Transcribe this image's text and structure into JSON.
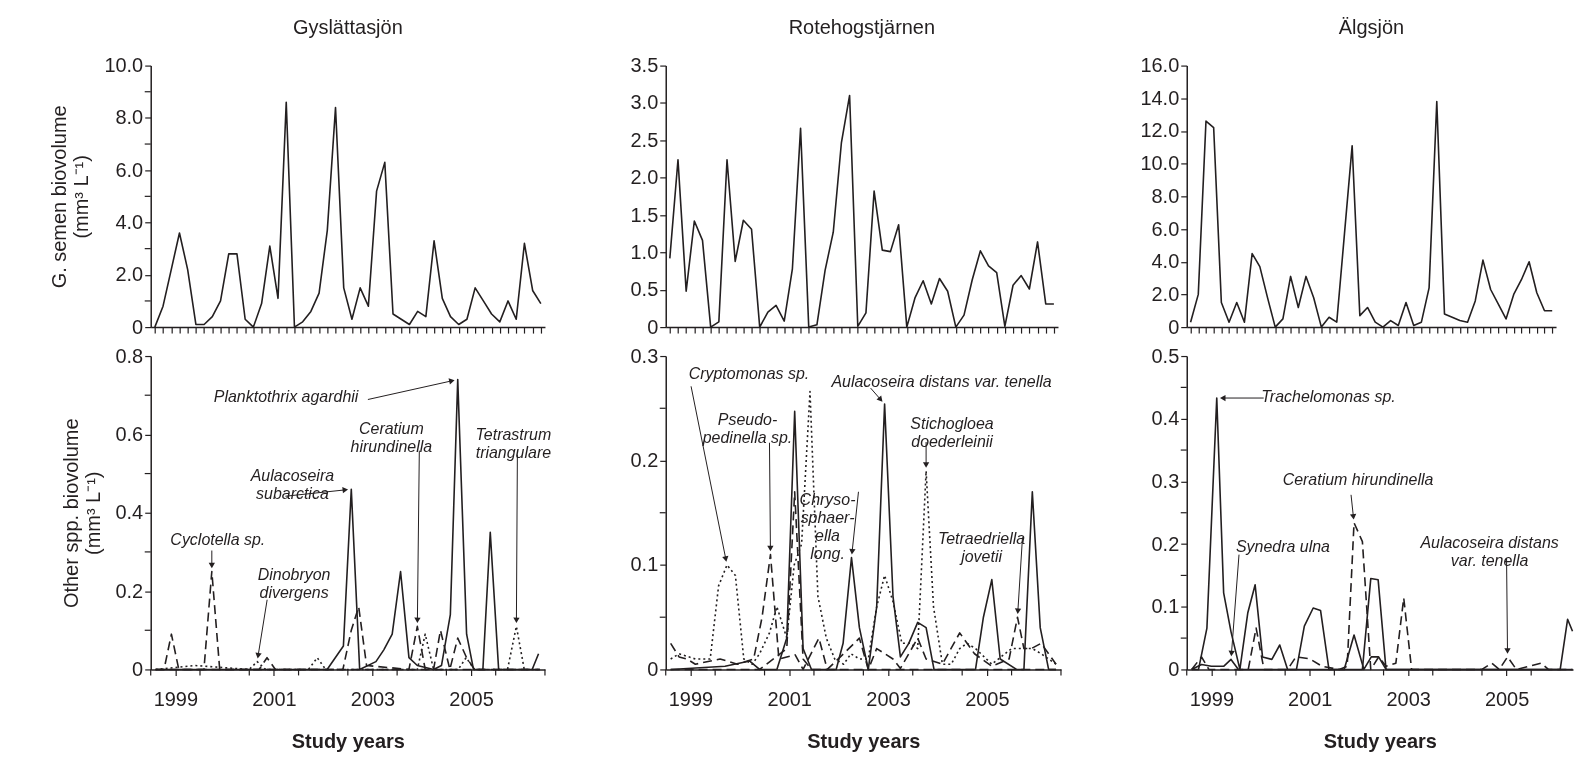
{
  "chart_data": [
    {
      "type": "line",
      "title": "Gyslättasjön",
      "ylabel": "G. semen biovolume\n(mm³ L⁻¹)",
      "tick_labels": "y",
      "categories": [
        null,
        null,
        null,
        null,
        null,
        null,
        null,
        null,
        null,
        null,
        null,
        null,
        null,
        null,
        null,
        null,
        null,
        null,
        null,
        null,
        null,
        null,
        null,
        null,
        null,
        null,
        null,
        null,
        null,
        null,
        null,
        null,
        null,
        null,
        null,
        null,
        null,
        null,
        null,
        null,
        null,
        null,
        null,
        null,
        null,
        null,
        null,
        null
      ],
      "ylim": [
        0,
        10
      ],
      "yticks": [
        0,
        {
          "value": 1,
          "label": null
        },
        {
          "value": 2,
          "label": "2.0"
        },
        {
          "value": 3,
          "label": null
        },
        {
          "value": 4,
          "label": "4.0"
        },
        {
          "value": 5,
          "label": null
        },
        {
          "value": 6,
          "label": "6.0"
        },
        {
          "value": 7,
          "label": null
        },
        {
          "value": 8,
          "label": "8.0"
        },
        {
          "value": 9,
          "label": null
        },
        {
          "value": 10,
          "label": "10.0"
        }
      ],
      "series": [
        {
          "color": "#231f20",
          "line_style": "solid",
          "values": [
            0,
            0.8,
            2.2,
            3.6,
            2.2,
            0.1,
            0.1,
            0.4,
            1.0,
            2.8,
            2.8,
            0.3,
            0,
            0.9,
            3.1,
            1.1,
            8.6,
            0,
            0.2,
            0.6,
            1.3,
            3.7,
            8.4,
            1.5,
            0.3,
            1.5,
            0.8,
            5.2,
            6.3,
            0.5,
            0.3,
            0.1,
            0.6,
            0.4,
            3.3,
            1.1,
            0.4,
            0.1,
            0.3,
            1.5,
            1.0,
            0.5,
            0.2,
            1.0,
            0.3,
            3.2,
            1.4,
            0.9
          ]
        }
      ]
    },
    {
      "type": "line",
      "title": "Rotehogstjärnen",
      "tick_labels": "y",
      "categories": [
        null,
        null,
        null,
        null,
        null,
        null,
        null,
        null,
        null,
        null,
        null,
        null,
        null,
        null,
        null,
        null,
        null,
        null,
        null,
        null,
        null,
        null,
        null,
        null,
        null,
        null,
        null,
        null,
        null,
        null,
        null,
        null,
        null,
        null,
        null,
        null,
        null,
        null,
        null,
        null,
        null,
        null,
        null,
        null,
        null,
        null,
        null,
        null
      ],
      "ylim": [
        0,
        3.5
      ],
      "yticks": [
        0,
        0.5,
        {
          "value": 1,
          "label": "1.0"
        },
        1.5,
        {
          "value": 2,
          "label": "2.0"
        },
        2.5,
        {
          "value": 3,
          "label": "3.0"
        },
        3.5
      ],
      "series": [
        {
          "color": "#231f20",
          "line_style": "solid",
          "values": [
            0.92,
            2.24,
            0.48,
            1.42,
            1.16,
            0,
            0.07,
            2.24,
            0.88,
            1.43,
            1.31,
            0,
            0.2,
            0.29,
            0.08,
            0.78,
            2.66,
            0,
            0.03,
            0.76,
            1.27,
            2.47,
            3.1,
            0.01,
            0.19,
            1.82,
            1.03,
            1.01,
            1.37,
            0,
            0.39,
            0.62,
            0.31,
            0.65,
            0.48,
            0,
            0.16,
            0.63,
            1.02,
            0.82,
            0.73,
            0.01,
            0.56,
            0.69,
            0.51,
            1.14,
            0.31,
            0.31
          ]
        }
      ]
    },
    {
      "type": "line",
      "title": "Älgsjön",
      "tick_labels": "y",
      "categories": [
        null,
        null,
        null,
        null,
        null,
        null,
        null,
        null,
        null,
        null,
        null,
        null,
        null,
        null,
        null,
        null,
        null,
        null,
        null,
        null,
        null,
        null,
        null,
        null,
        null,
        null,
        null,
        null,
        null,
        null,
        null,
        null,
        null,
        null,
        null,
        null,
        null,
        null,
        null,
        null,
        null,
        null,
        null,
        null,
        null,
        null,
        null,
        null
      ],
      "ylim": [
        0,
        16
      ],
      "yticks": [
        0,
        {
          "value": 2,
          "label": "2.0"
        },
        {
          "value": 4,
          "label": "4.0"
        },
        {
          "value": 6,
          "label": "6.0"
        },
        {
          "value": 8,
          "label": "8.0"
        },
        {
          "value": 10,
          "label": "10.0"
        },
        {
          "value": 12,
          "label": "12.0"
        },
        {
          "value": 14,
          "label": "14.0"
        },
        {
          "value": 16,
          "label": "16.0"
        }
      ],
      "series": [
        {
          "color": "#231f20",
          "line_style": "solid",
          "values": [
            0.3,
            2.0,
            12.6,
            12.2,
            1.5,
            0.3,
            1.5,
            0.3,
            4.5,
            3.7,
            1.8,
            0,
            0.5,
            3.1,
            1.2,
            3.1,
            1.8,
            0,
            0.6,
            0.3,
            5.7,
            11.1,
            0.7,
            1.2,
            0.3,
            0,
            0.4,
            0.1,
            1.5,
            0.1,
            0.3,
            2.4,
            13.8,
            0.8,
            0.6,
            0.4,
            0.3,
            1.6,
            4.1,
            2.3,
            1.4,
            0.5,
            2.0,
            2.9,
            4.0,
            2.1,
            1.0,
            1.0
          ]
        }
      ]
    },
    {
      "type": "line",
      "ylabel": "Other spp. biovolume\n(mm³ L⁻¹)",
      "xlabel": "Study years",
      "xlim": [
        1999,
        2007
      ],
      "xticks": [
        {
          "value": 1999,
          "label": null
        },
        {
          "value": 1999.5,
          "label": "1999"
        },
        {
          "value": 2000,
          "label": null
        },
        {
          "value": 2001,
          "label": null
        },
        {
          "value": 2001.5,
          "label": "2001"
        },
        {
          "value": 2002,
          "label": null
        },
        {
          "value": 2003,
          "label": null
        },
        {
          "value": 2003.5,
          "label": "2003"
        },
        {
          "value": 2004,
          "label": null
        },
        {
          "value": 2005,
          "label": null
        },
        {
          "value": 2005.5,
          "label": "2005"
        },
        {
          "value": 2006,
          "label": null
        },
        {
          "value": 2007,
          "label": null
        }
      ],
      "ylim": [
        0,
        0.8
      ],
      "yticks": [
        0,
        {
          "value": 0.1,
          "label": null
        },
        0.2,
        {
          "value": 0.3,
          "label": null
        },
        0.4,
        {
          "value": 0.5,
          "label": null
        },
        0.6,
        {
          "value": 0.7,
          "label": null
        },
        0.8
      ],
      "series": [
        {
          "color": "#231f20",
          "line_style": "solid",
          "x": [
            1999.1,
            2002.58,
            2002.91,
            2003.07,
            2003.24,
            2003.57,
            2003.73,
            2003.9,
            2004.07,
            2004.24,
            2004.41,
            2004.74,
            2004.9,
            2005.08,
            2005.23,
            2005.41,
            2005.55,
            2005.74,
            2005.89,
            2006.06,
            2006.74,
            2006.87
          ],
          "values": [
            0,
            0,
            0.06,
            0.46,
            0,
            0.02,
            0.05,
            0.09,
            0.25,
            0.03,
            0.01,
            0,
            0.01,
            0.14,
            0.74,
            0.09,
            0,
            0,
            0.35,
            0,
            0,
            0.04
          ]
        },
        {
          "color": "#231f20",
          "line_style": "dashed",
          "x": [
            1999.1,
            1999.27,
            1999.42,
            1999.57,
            2000.08,
            2000.24,
            2000.4,
            2006.9
          ],
          "values": [
            0,
            0,
            0.09,
            0,
            0,
            0.25,
            0,
            0
          ]
        },
        {
          "color": "#231f20",
          "line_style": "dashed",
          "x": [
            1999.1,
            2001.2,
            2001.36,
            2001.53,
            2002.9,
            2003.07,
            2003.22,
            2003.38,
            2004.24,
            2004.41,
            2004.57,
            2004.74,
            2004.88,
            2005.07,
            2005.23,
            2005.41,
            2005.57,
            2006.9
          ],
          "values": [
            0,
            0,
            0.03,
            0,
            0,
            0.1,
            0.16,
            0.01,
            0,
            0.11,
            0,
            0,
            0.1,
            0,
            0.08,
            0.03,
            0,
            0
          ]
        },
        {
          "color": "#231f20",
          "line_style": "dotted",
          "x": [
            1999.1,
            1999.9,
            2001.0,
            2001.16,
            2001.33,
            2002.2,
            2002.38,
            2002.55,
            2004.41,
            2004.57,
            2004.74,
            2005.24,
            2005.4,
            2005.57,
            2006.24,
            2006.42,
            2006.58,
            2006.9
          ],
          "values": [
            0,
            0.01,
            0,
            0.02,
            0,
            0,
            0.03,
            0,
            0,
            0.09,
            0,
            0,
            0.03,
            0,
            0,
            0.11,
            0,
            0
          ]
        }
      ],
      "annotations": [
        {
          "text": "Cyclotella sp.",
          "x": 2000.24,
          "y": 0.25
        },
        {
          "text": "Dinobryon\ndivergens",
          "x": 2001.16,
          "y": 0.02
        },
        {
          "text": "Aulacoseira\nsubarctica",
          "x": 2003.07,
          "y": 0.46
        },
        {
          "text": "Planktothrix agardhii",
          "x": 2005.23,
          "y": 0.74
        },
        {
          "text": "Ceratium\nhirundinella",
          "x": 2004.41,
          "y": 0.11
        },
        {
          "text": "Tetrastrum\ntriangulare",
          "x": 2006.42,
          "y": 0.11
        }
      ]
    },
    {
      "type": "line",
      "xlabel": "Study years",
      "xlim": [
        1999,
        2007
      ],
      "xticks": [
        {
          "value": 1999,
          "label": null
        },
        {
          "value": 1999.5,
          "label": "1999"
        },
        {
          "value": 2000,
          "label": null
        },
        {
          "value": 2001,
          "label": null
        },
        {
          "value": 2001.5,
          "label": "2001"
        },
        {
          "value": 2002,
          "label": null
        },
        {
          "value": 2003,
          "label": null
        },
        {
          "value": 2003.5,
          "label": "2003"
        },
        {
          "value": 2004,
          "label": null
        },
        {
          "value": 2005,
          "label": null
        },
        {
          "value": 2005.5,
          "label": "2005"
        },
        {
          "value": 2006,
          "label": null
        },
        {
          "value": 2007,
          "label": null
        }
      ],
      "ylim": [
        0,
        0.3
      ],
      "yticks": [
        0,
        {
          "value": 0.05,
          "label": null
        },
        0.1,
        {
          "value": 0.15,
          "label": null
        },
        0.2,
        {
          "value": 0.25,
          "label": null
        },
        0.3
      ],
      "series": [
        {
          "color": "#231f20",
          "line_style": "solid",
          "x": [
            1999.1,
            2000.2,
            2000.7,
            2000.9,
            2001.25,
            2001.45,
            2001.61,
            2001.78,
            2001.95,
            2002.45,
            2002.59,
            2002.76,
            2002.92,
            2003.1,
            2003.27,
            2003.43,
            2003.6,
            2003.75,
            2003.92,
            2004.1,
            2004.27,
            2004.43,
            2004.9,
            2005.27,
            2005.43,
            2005.6,
            2005.77,
            2006.1,
            2006.25,
            2006.42,
            2006.58,
            2006.75,
            2006.9
          ],
          "values": [
            0,
            0.003,
            0.008,
            0,
            0,
            0.03,
            0.247,
            0.02,
            0,
            0,
            0.025,
            0.107,
            0.04,
            0,
            0.06,
            0.254,
            0.07,
            0.012,
            0.025,
            0.045,
            0.04,
            0,
            0,
            0,
            0.05,
            0.086,
            0.01,
            0,
            0,
            0.17,
            0.04,
            0,
            0
          ]
        },
        {
          "color": "#231f20",
          "line_style": "dashed",
          "x": [
            1999.1,
            1999.27,
            1999.43,
            1999.6,
            2000.1,
            2000.45,
            2000.78,
            2000.95,
            2001.12,
            2001.29,
            2001.45,
            2001.62,
            2001.78,
            2002.1,
            2002.27,
            2002.6,
            2002.92,
            2003.1,
            2003.27,
            2003.6,
            2003.75,
            2004.1,
            2004.27,
            2004.6,
            2004.95,
            2005.25,
            2005.6,
            2005.95,
            2006.12,
            2006.25,
            2006.4,
            2006.6,
            2006.9
          ],
          "values": [
            0.025,
            0.012,
            0.01,
            0.005,
            0.01,
            0.005,
            0.01,
            0.05,
            0.11,
            0.01,
            0.012,
            0.014,
            0,
            0.03,
            0,
            0.015,
            0.03,
            0,
            0.02,
            0.01,
            0.001,
            0.03,
            0.01,
            0.005,
            0.035,
            0.015,
            0.003,
            0.01,
            0.05,
            0.02,
            0.02,
            0.025,
            0.005
          ]
        },
        {
          "color": "#231f20",
          "line_style": "dotted",
          "x": [
            1999.1,
            1999.27,
            1999.6,
            1999.9,
            2000.07,
            2000.24,
            2000.41,
            2000.58,
            2000.75,
            2000.9,
            2001.1,
            2001.25,
            2001.45,
            2001.6,
            2001.75,
            2001.92,
            2002.08,
            2002.25,
            2002.42,
            2002.6,
            2002.75,
            2002.92,
            2003.1,
            2003.27,
            2003.43,
            2003.6,
            2003.78,
            2003.95,
            2004.1,
            2004.27,
            2004.42,
            2004.6,
            2004.78,
            2004.95,
            2005.1,
            2005.27,
            2005.6,
            2006.0,
            2006.25,
            2006.42,
            2006.6,
            2006.9
          ],
          "values": [
            0.01,
            0.015,
            0.01,
            0.01,
            0.08,
            0.1,
            0.09,
            0.01,
            0.005,
            0.015,
            0.035,
            0.06,
            0.03,
            0.1,
            0.12,
            0.266,
            0.07,
            0.03,
            0.01,
            0.005,
            0.015,
            0.01,
            0.01,
            0.06,
            0.09,
            0.065,
            0.025,
            0.025,
            0.02,
            0.19,
            0.06,
            0.005,
            0.005,
            0.02,
            0.025,
            0.02,
            0.005,
            0.02,
            0.02,
            0.02,
            0.015,
            0.005
          ]
        },
        {
          "color": "#231f20",
          "line_style": "dashed",
          "x": [
            1999.1,
            2000.9,
            2001.45,
            2001.61,
            2001.78,
            2001.95,
            2006.9
          ],
          "values": [
            0,
            0,
            0.02,
            0.17,
            0.01,
            0,
            0
          ]
        }
      ],
      "annotations": [
        {
          "text": "Cryptomonas sp.",
          "x": 2000.24,
          "y": 0.1
        },
        {
          "text": "Pseudo-\npedinella sp.",
          "x": 2001.12,
          "y": 0.11
        },
        {
          "text": "Chryso-\nsphaer-\nella\nlong.",
          "x": 2002.76,
          "y": 0.107
        },
        {
          "text": "Aulacoseira distans var. tenella",
          "x": 2003.43,
          "y": 0.254
        },
        {
          "text": "Stichogloea\ndoederleinii",
          "x": 2004.27,
          "y": 0.19
        },
        {
          "text": "Tetraedriella\njovetii",
          "x": 2006.12,
          "y": 0.05
        }
      ]
    },
    {
      "type": "line",
      "xlabel": "Study years",
      "xlim": [
        1999,
        2006.85
      ],
      "xticks": [
        {
          "value": 1999,
          "label": null
        },
        {
          "value": 1999.5,
          "label": "1999"
        },
        {
          "value": 2000,
          "label": null
        },
        {
          "value": 2001,
          "label": null
        },
        {
          "value": 2001.5,
          "label": "2001"
        },
        {
          "value": 2002,
          "label": null
        },
        {
          "value": 2003,
          "label": null
        },
        {
          "value": 2003.5,
          "label": "2003"
        },
        {
          "value": 2004,
          "label": null
        },
        {
          "value": 2005,
          "label": null
        },
        {
          "value": 2005.5,
          "label": "2005"
        },
        {
          "value": 2006,
          "label": null
        }
      ],
      "ylim": [
        0,
        0.5
      ],
      "yticks": [
        0,
        {
          "value": 0.05,
          "label": null
        },
        0.1,
        {
          "value": 0.15,
          "label": null
        },
        0.2,
        {
          "value": 0.25,
          "label": null
        },
        0.3,
        {
          "value": 0.35,
          "label": null
        },
        0.4,
        {
          "value": 0.45,
          "label": null
        },
        0.5
      ],
      "series": [
        {
          "color": "#231f20",
          "line_style": "solid",
          "x": [
            1999.1,
            1999.24,
            1999.41,
            1999.61,
            1999.75,
            1999.9,
            2000.08,
            2000.24,
            2000.39,
            2000.54,
            2000.73,
            2000.89,
            2001.05,
            2001.23,
            2001.39,
            2001.57,
            2001.72,
            2001.89,
            2002.57,
            2002.74,
            2002.89,
            2003.05,
            2006.59,
            2006.74,
            2006.84
          ],
          "values": [
            0,
            0,
            0.066,
            0.433,
            0.122,
            0.06,
            0,
            0.09,
            0.135,
            0.02,
            0.016,
            0.039,
            0,
            0,
            0.069,
            0.098,
            0.094,
            0,
            0,
            0.145,
            0.143,
            0,
            0,
            0.08,
            0.061
          ]
        },
        {
          "color": "#231f20",
          "line_style": "dashed",
          "x": [
            1999.1,
            1999.3,
            1999.45,
            2000.25,
            2000.41,
            2000.57,
            2001.05,
            2001.22,
            2001.5,
            2001.75,
            2002.1,
            2002.26,
            2002.4,
            2002.57,
            2002.74,
            2002.9,
            2003.05,
            2003.25,
            2003.41,
            2003.57,
            2005.0,
            2005.2,
            2005.35,
            2005.52,
            2005.7,
            2006.2,
            2006.35,
            2006.84
          ],
          "values": [
            0,
            0.02,
            0,
            0,
            0.066,
            0,
            0,
            0.02,
            0.017,
            0.005,
            0,
            0.005,
            0.234,
            0.204,
            0,
            0.02,
            0.005,
            0.01,
            0.114,
            0,
            0,
            0.01,
            0,
            0.02,
            0,
            0.01,
            0,
            0
          ]
        },
        {
          "color": "#231f20",
          "line_style": "solid",
          "x": [
            1999.1,
            1999.3,
            1999.5,
            1999.75,
            1999.9,
            2000.05,
            2002.2,
            2002.4,
            2002.6,
            2002.75,
            2002.9,
            2003.05,
            2006.84
          ],
          "values": [
            0,
            0.008,
            0.005,
            0.005,
            0.016,
            0,
            0,
            0.055,
            0,
            0.02,
            0.02,
            0,
            0
          ]
        }
      ],
      "annotations": [
        {
          "text": "Trachelomonas sp.",
          "x": 1999.61,
          "y": 0.433
        },
        {
          "text": "Synedra ulna",
          "x": 1999.9,
          "y": 0.016
        },
        {
          "text": "Ceratium hirundinella",
          "x": 2002.4,
          "y": 0.234
        },
        {
          "text": "Aulacoseira distans\nvar. tenella",
          "x": 2005.52,
          "y": 0.02
        }
      ]
    }
  ]
}
